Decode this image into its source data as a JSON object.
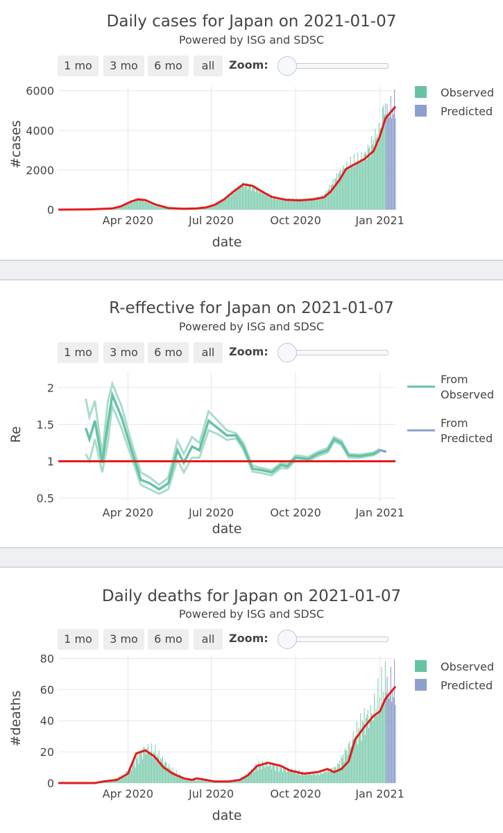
{
  "range_buttons": [
    "1 mo",
    "3 mo",
    "6 mo",
    "all"
  ],
  "zoom_label": "Zoom:",
  "colors": {
    "observed": "#66c2a5",
    "observed_bar": "#86cfb3",
    "predicted": "#8da0cb",
    "fit": "#e41a1c",
    "grid": "#e6e6e6",
    "axis": "#444444"
  },
  "cases_panel": {
    "title": "Daily cases for Japan on 2021-01-07",
    "subtitle": "Powered by ISG and SDSC",
    "legend": {
      "observed": "Observed",
      "predicted": "Predicted"
    },
    "chart_data": {
      "type": "bar",
      "title": "Daily cases for Japan on 2021-01-07",
      "xlabel": "date",
      "ylabel": "#cases",
      "x_range": [
        "2020-01-16",
        "2021-01-18"
      ],
      "ylim": [
        0,
        6200
      ],
      "yticks": [
        0,
        2000,
        4000,
        6000
      ],
      "yticks_labels": [
        "0",
        "2000",
        "4000",
        "6000"
      ],
      "xticks": [
        "2020-04-01",
        "2020-07-01",
        "2020-10-01",
        "2021-01-01"
      ],
      "xticks_labels": [
        "Apr 2020",
        "Jul 2020",
        "Oct 2020",
        "Jan 2021"
      ],
      "observed_range": [
        "2020-01-16",
        "2021-01-07"
      ],
      "predicted_range": [
        "2021-01-08",
        "2021-01-18"
      ],
      "observed_anchors": [
        [
          "2020-01-16",
          0
        ],
        [
          "2020-02-20",
          20
        ],
        [
          "2020-03-15",
          50
        ],
        [
          "2020-03-28",
          180
        ],
        [
          "2020-04-05",
          420
        ],
        [
          "2020-04-12",
          560
        ],
        [
          "2020-04-20",
          430
        ],
        [
          "2020-05-01",
          200
        ],
        [
          "2020-05-15",
          50
        ],
        [
          "2020-06-01",
          35
        ],
        [
          "2020-06-15",
          50
        ],
        [
          "2020-06-25",
          100
        ],
        [
          "2020-07-05",
          220
        ],
        [
          "2020-07-15",
          500
        ],
        [
          "2020-07-25",
          900
        ],
        [
          "2020-08-05",
          1300
        ],
        [
          "2020-08-12",
          1200
        ],
        [
          "2020-08-25",
          900
        ],
        [
          "2020-09-05",
          620
        ],
        [
          "2020-09-20",
          500
        ],
        [
          "2020-10-05",
          480
        ],
        [
          "2020-10-20",
          560
        ],
        [
          "2020-11-01",
          700
        ],
        [
          "2020-11-10",
          1300
        ],
        [
          "2020-11-20",
          2000
        ],
        [
          "2020-12-01",
          2300
        ],
        [
          "2020-12-15",
          2700
        ],
        [
          "2020-12-25",
          3400
        ],
        [
          "2021-01-01",
          4000
        ],
        [
          "2021-01-07",
          5500
        ]
      ],
      "predicted_anchors": [
        [
          "2021-01-08",
          4800
        ],
        [
          "2021-01-18",
          5200
        ]
      ],
      "fit_anchors": [
        [
          "2020-01-16",
          0
        ],
        [
          "2020-02-20",
          15
        ],
        [
          "2020-03-15",
          60
        ],
        [
          "2020-03-25",
          180
        ],
        [
          "2020-04-05",
          420
        ],
        [
          "2020-04-12",
          520
        ],
        [
          "2020-04-20",
          480
        ],
        [
          "2020-05-01",
          260
        ],
        [
          "2020-05-15",
          80
        ],
        [
          "2020-06-01",
          45
        ],
        [
          "2020-06-15",
          60
        ],
        [
          "2020-06-25",
          110
        ],
        [
          "2020-07-05",
          250
        ],
        [
          "2020-07-15",
          520
        ],
        [
          "2020-07-25",
          900
        ],
        [
          "2020-08-05",
          1280
        ],
        [
          "2020-08-15",
          1200
        ],
        [
          "2020-08-25",
          920
        ],
        [
          "2020-09-05",
          640
        ],
        [
          "2020-09-20",
          500
        ],
        [
          "2020-10-05",
          470
        ],
        [
          "2020-10-20",
          520
        ],
        [
          "2020-11-01",
          620
        ],
        [
          "2020-11-08",
          900
        ],
        [
          "2020-11-18",
          1500
        ],
        [
          "2020-11-25",
          2050
        ],
        [
          "2020-12-05",
          2300
        ],
        [
          "2020-12-15",
          2550
        ],
        [
          "2020-12-25",
          2950
        ],
        [
          "2021-01-01",
          3700
        ],
        [
          "2021-01-07",
          4600
        ],
        [
          "2021-01-18",
          5200
        ]
      ]
    }
  },
  "re_panel": {
    "title": "R-effective for Japan on 2021-01-07",
    "subtitle": "Powered by ISG and SDSC",
    "legend": {
      "observed_line1": "From",
      "observed_line2": "Observed",
      "predicted_line1": "From",
      "predicted_line2": "Predicted"
    },
    "chart_data": {
      "type": "line",
      "title": "R-effective for Japan on 2021-01-07",
      "xlabel": "date",
      "ylabel": "Re",
      "x_range": [
        "2020-01-16",
        "2021-01-18"
      ],
      "ylim": [
        0.45,
        2.2
      ],
      "yticks": [
        0.5,
        1,
        1.5,
        2
      ],
      "yticks_labels": [
        "0.5",
        "1",
        "1.5",
        "2"
      ],
      "xticks": [
        "2020-04-01",
        "2020-07-01",
        "2020-10-01",
        "2021-01-01"
      ],
      "xticks_labels": [
        "Apr 2020",
        "Jul 2020",
        "Oct 2020",
        "Jan 2021"
      ],
      "reference_line": 1,
      "series": [
        {
          "name": "From Observed",
          "values": [
            [
              "2020-02-15",
              1.45
            ],
            [
              "2020-02-19",
              1.3
            ],
            [
              "2020-02-25",
              1.55
            ],
            [
              "2020-03-04",
              0.98
            ],
            [
              "2020-03-10",
              1.5
            ],
            [
              "2020-03-15",
              1.9
            ],
            [
              "2020-03-25",
              1.6
            ],
            [
              "2020-04-05",
              1.15
            ],
            [
              "2020-04-15",
              0.75
            ],
            [
              "2020-04-25",
              0.7
            ],
            [
              "2020-05-05",
              0.62
            ],
            [
              "2020-05-15",
              0.7
            ],
            [
              "2020-05-25",
              1.15
            ],
            [
              "2020-06-01",
              0.98
            ],
            [
              "2020-06-10",
              1.2
            ],
            [
              "2020-06-18",
              1.15
            ],
            [
              "2020-06-28",
              1.55
            ],
            [
              "2020-07-08",
              1.45
            ],
            [
              "2020-07-18",
              1.35
            ],
            [
              "2020-07-28",
              1.35
            ],
            [
              "2020-08-05",
              1.2
            ],
            [
              "2020-08-15",
              0.9
            ],
            [
              "2020-08-25",
              0.88
            ],
            [
              "2020-09-05",
              0.85
            ],
            [
              "2020-09-15",
              0.95
            ],
            [
              "2020-09-22",
              0.93
            ],
            [
              "2020-10-01",
              1.05
            ],
            [
              "2020-10-15",
              1.03
            ],
            [
              "2020-10-25",
              1.1
            ],
            [
              "2020-11-05",
              1.15
            ],
            [
              "2020-11-12",
              1.3
            ],
            [
              "2020-11-20",
              1.25
            ],
            [
              "2020-11-28",
              1.08
            ],
            [
              "2020-12-10",
              1.07
            ],
            [
              "2020-12-25",
              1.1
            ],
            [
              "2021-01-01",
              1.15
            ]
          ]
        },
        {
          "name": "From Predicted",
          "values": [
            [
              "2021-01-01",
              1.15
            ],
            [
              "2021-01-08",
              1.13
            ]
          ]
        }
      ],
      "band_upper": [
        [
          "2020-02-15",
          1.85
        ],
        [
          "2020-02-19",
          1.6
        ],
        [
          "2020-02-25",
          1.82
        ],
        [
          "2020-03-04",
          1.1
        ],
        [
          "2020-03-10",
          1.8
        ],
        [
          "2020-03-15",
          2.05
        ],
        [
          "2020-03-25",
          1.75
        ],
        [
          "2020-04-05",
          1.25
        ],
        [
          "2020-04-15",
          0.85
        ],
        [
          "2020-04-25",
          0.78
        ],
        [
          "2020-05-05",
          0.68
        ],
        [
          "2020-05-15",
          0.78
        ],
        [
          "2020-05-25",
          1.28
        ],
        [
          "2020-06-01",
          1.1
        ],
        [
          "2020-06-10",
          1.33
        ],
        [
          "2020-06-18",
          1.25
        ],
        [
          "2020-06-28",
          1.68
        ],
        [
          "2020-07-08",
          1.55
        ],
        [
          "2020-07-18",
          1.42
        ],
        [
          "2020-07-28",
          1.38
        ],
        [
          "2020-08-05",
          1.25
        ],
        [
          "2020-08-15",
          0.94
        ],
        [
          "2020-08-25",
          0.91
        ],
        [
          "2020-09-05",
          0.88
        ],
        [
          "2020-09-15",
          0.98
        ],
        [
          "2020-09-22",
          0.96
        ],
        [
          "2020-10-01",
          1.08
        ],
        [
          "2020-10-15",
          1.06
        ],
        [
          "2020-10-25",
          1.13
        ],
        [
          "2020-11-05",
          1.18
        ],
        [
          "2020-11-12",
          1.33
        ],
        [
          "2020-11-20",
          1.28
        ],
        [
          "2020-11-28",
          1.1
        ],
        [
          "2020-12-10",
          1.09
        ],
        [
          "2020-12-25",
          1.12
        ],
        [
          "2021-01-01",
          1.17
        ]
      ],
      "band_lower": [
        [
          "2020-02-15",
          1.1
        ],
        [
          "2020-02-19",
          1.0
        ],
        [
          "2020-02-25",
          1.3
        ],
        [
          "2020-03-04",
          0.85
        ],
        [
          "2020-03-10",
          1.25
        ],
        [
          "2020-03-15",
          1.75
        ],
        [
          "2020-03-25",
          1.45
        ],
        [
          "2020-04-05",
          1.05
        ],
        [
          "2020-04-15",
          0.68
        ],
        [
          "2020-04-25",
          0.62
        ],
        [
          "2020-05-05",
          0.56
        ],
        [
          "2020-05-15",
          0.62
        ],
        [
          "2020-05-25",
          1.02
        ],
        [
          "2020-06-01",
          0.85
        ],
        [
          "2020-06-10",
          1.05
        ],
        [
          "2020-06-18",
          1.05
        ],
        [
          "2020-06-28",
          1.42
        ],
        [
          "2020-07-08",
          1.37
        ],
        [
          "2020-07-18",
          1.29
        ],
        [
          "2020-07-28",
          1.31
        ],
        [
          "2020-08-05",
          1.16
        ],
        [
          "2020-08-15",
          0.86
        ],
        [
          "2020-08-25",
          0.84
        ],
        [
          "2020-09-05",
          0.81
        ],
        [
          "2020-09-15",
          0.91
        ],
        [
          "2020-09-22",
          0.9
        ],
        [
          "2020-10-01",
          1.01
        ],
        [
          "2020-10-15",
          1.0
        ],
        [
          "2020-10-25",
          1.07
        ],
        [
          "2020-11-05",
          1.12
        ],
        [
          "2020-11-12",
          1.27
        ],
        [
          "2020-11-20",
          1.22
        ],
        [
          "2020-11-28",
          1.05
        ],
        [
          "2020-12-10",
          1.05
        ],
        [
          "2020-12-25",
          1.08
        ],
        [
          "2021-01-01",
          1.13
        ]
      ]
    }
  },
  "deaths_panel": {
    "title": "Daily deaths for Japan on 2021-01-07",
    "subtitle": "Powered by ISG and SDSC",
    "legend": {
      "observed": "Observed",
      "predicted": "Predicted"
    },
    "chart_data": {
      "type": "bar",
      "title": "Daily deaths for Japan on 2021-01-07",
      "xlabel": "date",
      "ylabel": "#deaths",
      "x_range": [
        "2020-01-16",
        "2021-01-18"
      ],
      "ylim": [
        0,
        82
      ],
      "yticks": [
        0,
        20,
        40,
        60,
        80
      ],
      "yticks_labels": [
        "0",
        "20",
        "40",
        "60",
        "80"
      ],
      "xticks": [
        "2020-04-01",
        "2020-07-01",
        "2020-10-01",
        "2021-01-01"
      ],
      "xticks_labels": [
        "Apr 2020",
        "Jul 2020",
        "Oct 2020",
        "Jan 2021"
      ],
      "observed_range": [
        "2020-02-15",
        "2021-01-07"
      ],
      "predicted_range": [
        "2021-01-08",
        "2021-01-18"
      ],
      "observed_anchors": [
        [
          "2020-02-15",
          0
        ],
        [
          "2020-03-01",
          1
        ],
        [
          "2020-03-15",
          2
        ],
        [
          "2020-03-28",
          5
        ],
        [
          "2020-04-10",
          15
        ],
        [
          "2020-04-20",
          22
        ],
        [
          "2020-04-30",
          20
        ],
        [
          "2020-05-10",
          14
        ],
        [
          "2020-05-20",
          8
        ],
        [
          "2020-06-01",
          3
        ],
        [
          "2020-06-15",
          2
        ],
        [
          "2020-07-01",
          1
        ],
        [
          "2020-07-15",
          1
        ],
        [
          "2020-07-30",
          2
        ],
        [
          "2020-08-10",
          6
        ],
        [
          "2020-08-20",
          11
        ],
        [
          "2020-09-01",
          12
        ],
        [
          "2020-09-15",
          10
        ],
        [
          "2020-09-25",
          8
        ],
        [
          "2020-10-10",
          6
        ],
        [
          "2020-10-25",
          6
        ],
        [
          "2020-11-05",
          8
        ],
        [
          "2020-11-15",
          10
        ],
        [
          "2020-11-25",
          20
        ],
        [
          "2020-12-05",
          30
        ],
        [
          "2020-12-15",
          40
        ],
        [
          "2020-12-25",
          45
        ],
        [
          "2021-01-01",
          55
        ],
        [
          "2021-01-07",
          62
        ]
      ],
      "predicted_anchors": [
        [
          "2021-01-08",
          58
        ],
        [
          "2021-01-18",
          62
        ]
      ],
      "fit_anchors": [
        [
          "2020-01-16",
          0
        ],
        [
          "2020-02-25",
          0
        ],
        [
          "2020-03-05",
          1
        ],
        [
          "2020-03-20",
          2
        ],
        [
          "2020-04-01",
          6
        ],
        [
          "2020-04-10",
          19
        ],
        [
          "2020-04-20",
          21
        ],
        [
          "2020-04-30",
          17
        ],
        [
          "2020-05-10",
          10
        ],
        [
          "2020-05-20",
          6
        ],
        [
          "2020-06-01",
          3
        ],
        [
          "2020-06-10",
          2
        ],
        [
          "2020-06-15",
          3
        ],
        [
          "2020-06-25",
          2
        ],
        [
          "2020-07-05",
          1
        ],
        [
          "2020-07-20",
          1
        ],
        [
          "2020-08-01",
          2
        ],
        [
          "2020-08-10",
          5
        ],
        [
          "2020-08-20",
          11
        ],
        [
          "2020-09-01",
          13
        ],
        [
          "2020-09-15",
          11
        ],
        [
          "2020-09-25",
          8
        ],
        [
          "2020-10-10",
          6
        ],
        [
          "2020-10-25",
          7
        ],
        [
          "2020-11-05",
          9
        ],
        [
          "2020-11-12",
          7
        ],
        [
          "2020-11-20",
          9
        ],
        [
          "2020-11-28",
          14
        ],
        [
          "2020-12-05",
          28
        ],
        [
          "2020-12-15",
          36
        ],
        [
          "2020-12-25",
          43
        ],
        [
          "2021-01-01",
          46
        ],
        [
          "2021-01-07",
          54
        ],
        [
          "2021-01-18",
          62
        ]
      ]
    }
  }
}
